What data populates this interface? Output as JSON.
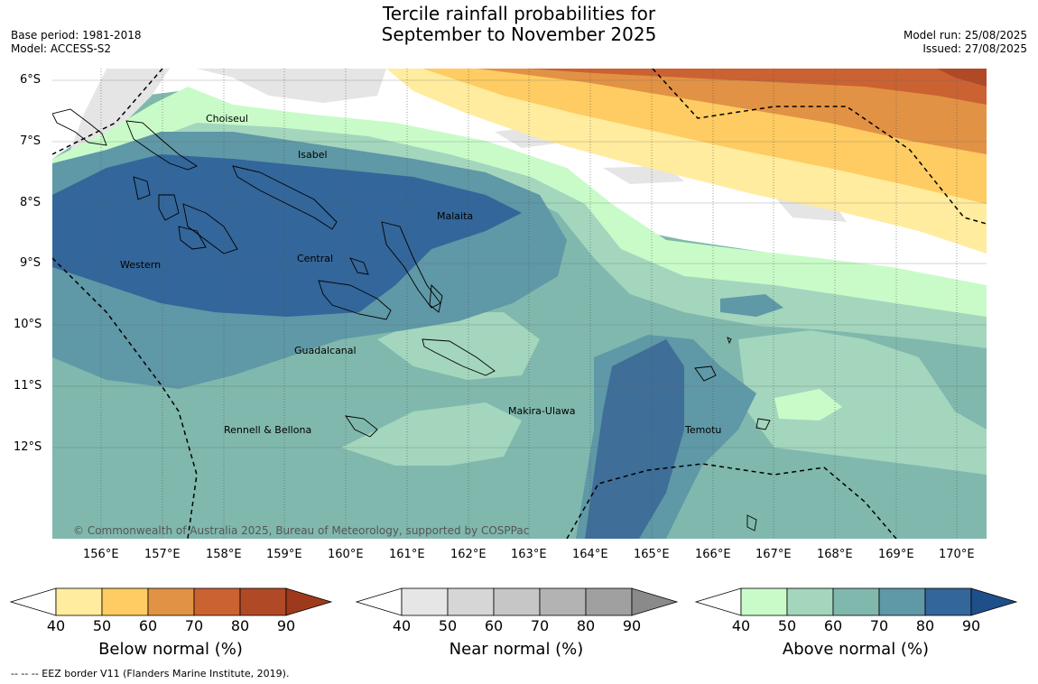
{
  "title": {
    "line1": "Tercile rainfall probabilities for",
    "line2": "September to November 2025"
  },
  "meta_left": {
    "base_period": "Base period: 1981-2018",
    "model": "Model: ACCESS-S2"
  },
  "meta_right": {
    "model_run": "Model run: 25/08/2025",
    "issued": "Issued: 27/08/2025"
  },
  "axes": {
    "lat_labels": [
      "6°S",
      "7°S",
      "8°S",
      "9°S",
      "10°S",
      "11°S",
      "12°S"
    ],
    "lon_labels": [
      "156°E",
      "157°E",
      "158°E",
      "159°E",
      "160°E",
      "161°E",
      "162°E",
      "163°E",
      "164°E",
      "165°E",
      "166°E",
      "167°E",
      "168°E",
      "169°E",
      "170°E"
    ]
  },
  "provinces": [
    "Choiseul",
    "Isabel",
    "Malaita",
    "Western",
    "Central",
    "Guadalcanal",
    "Makira-Ulawa",
    "Rennell & Bellona",
    "Temotu"
  ],
  "copyright": "© Commonwealth of Australia 2025, Bureau of Meteorology, supported by COSPPac",
  "colorbars": [
    {
      "label": "Below normal (%)",
      "ticks": [
        "40",
        "50",
        "60",
        "70",
        "80",
        "90"
      ],
      "colors": [
        "#ffffff",
        "#ffec9e",
        "#fecc62",
        "#e29244",
        "#cb6232",
        "#b04a26",
        "#9e3a1c"
      ]
    },
    {
      "label": "Near normal (%)",
      "ticks": [
        "40",
        "50",
        "60",
        "70",
        "80",
        "90"
      ],
      "colors": [
        "#ffffff",
        "#e6e6e6",
        "#d6d6d6",
        "#c6c6c6",
        "#b3b3b3",
        "#a0a0a0",
        "#8a8a8a"
      ]
    },
    {
      "label": "Above normal (%)",
      "ticks": [
        "40",
        "50",
        "60",
        "70",
        "80",
        "90"
      ],
      "colors": [
        "#ffffff",
        "#c9fbc9",
        "#a3d6bd",
        "#80b8ad",
        "#5f98a6",
        "#33669a",
        "#1e4f8a"
      ]
    }
  ],
  "footer": "--  --  -- EEZ border V11 (Flanders Marine Institute, 2019)."
}
